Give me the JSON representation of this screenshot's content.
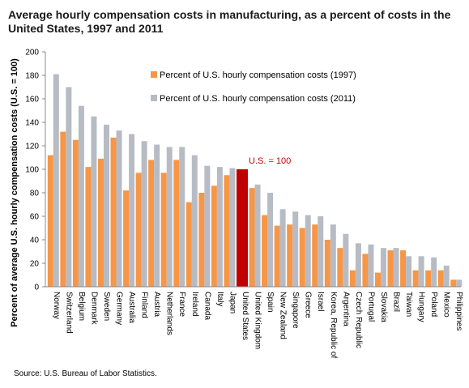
{
  "chart_data": {
    "type": "bar",
    "title": "Average hourly compensation costs in manufacturing, as a percent of costs in the United States, 1997 and 2011",
    "ylabel": "Percent of average U.S. hourly compensation costs (U.S. = 100)",
    "xlabel": "",
    "ylim": [
      0,
      200
    ],
    "yticks": [
      0,
      20,
      40,
      60,
      80,
      100,
      120,
      140,
      160,
      180,
      200
    ],
    "grid": false,
    "legend_position": "top-center",
    "categories": [
      "Norway",
      "Switzerland",
      "Belgium",
      "Denmark",
      "Sweden",
      "Germany",
      "Australia",
      "Finland",
      "Austria",
      "Netherlands",
      "France",
      "Ireland",
      "Canada",
      "Italy",
      "Japan",
      "United States",
      "United Kingdom",
      "Spain",
      "New Zealand",
      "Singapore",
      "Greece",
      "Israel",
      "Korea, Republic of",
      "Argentina",
      "Czech Republic",
      "Portugal",
      "Slovakia",
      "Brazil",
      "Taiwan",
      "Hungary",
      "Poland",
      "Mexico",
      "Philippines"
    ],
    "series": [
      {
        "name": "Percent of U.S. hourly compensation costs (1997)",
        "color": "#f79646",
        "values": [
          112,
          132,
          125,
          102,
          109,
          127,
          82,
          97,
          108,
          97,
          108,
          72,
          80,
          86,
          95,
          100,
          84,
          61,
          52,
          53,
          50,
          53,
          40,
          33,
          14,
          28,
          12,
          31,
          31,
          14,
          14,
          14,
          6
        ]
      },
      {
        "name": "Percent of U.S. hourly compensation costs (2011)",
        "color": "#b7bcc4",
        "values": [
          181,
          170,
          154,
          145,
          138,
          133,
          130,
          124,
          121,
          119,
          119,
          112,
          103,
          102,
          101,
          100,
          87,
          80,
          66,
          64,
          61,
          60,
          53,
          45,
          37,
          36,
          33,
          33,
          26,
          26,
          25,
          18,
          6
        ]
      }
    ],
    "highlight": {
      "category": "United States",
      "value": 100,
      "color": "#c00000"
    },
    "annotation": "U.S. = 100"
  },
  "source": "Source: U.S. Bureau of Labor Statistics."
}
